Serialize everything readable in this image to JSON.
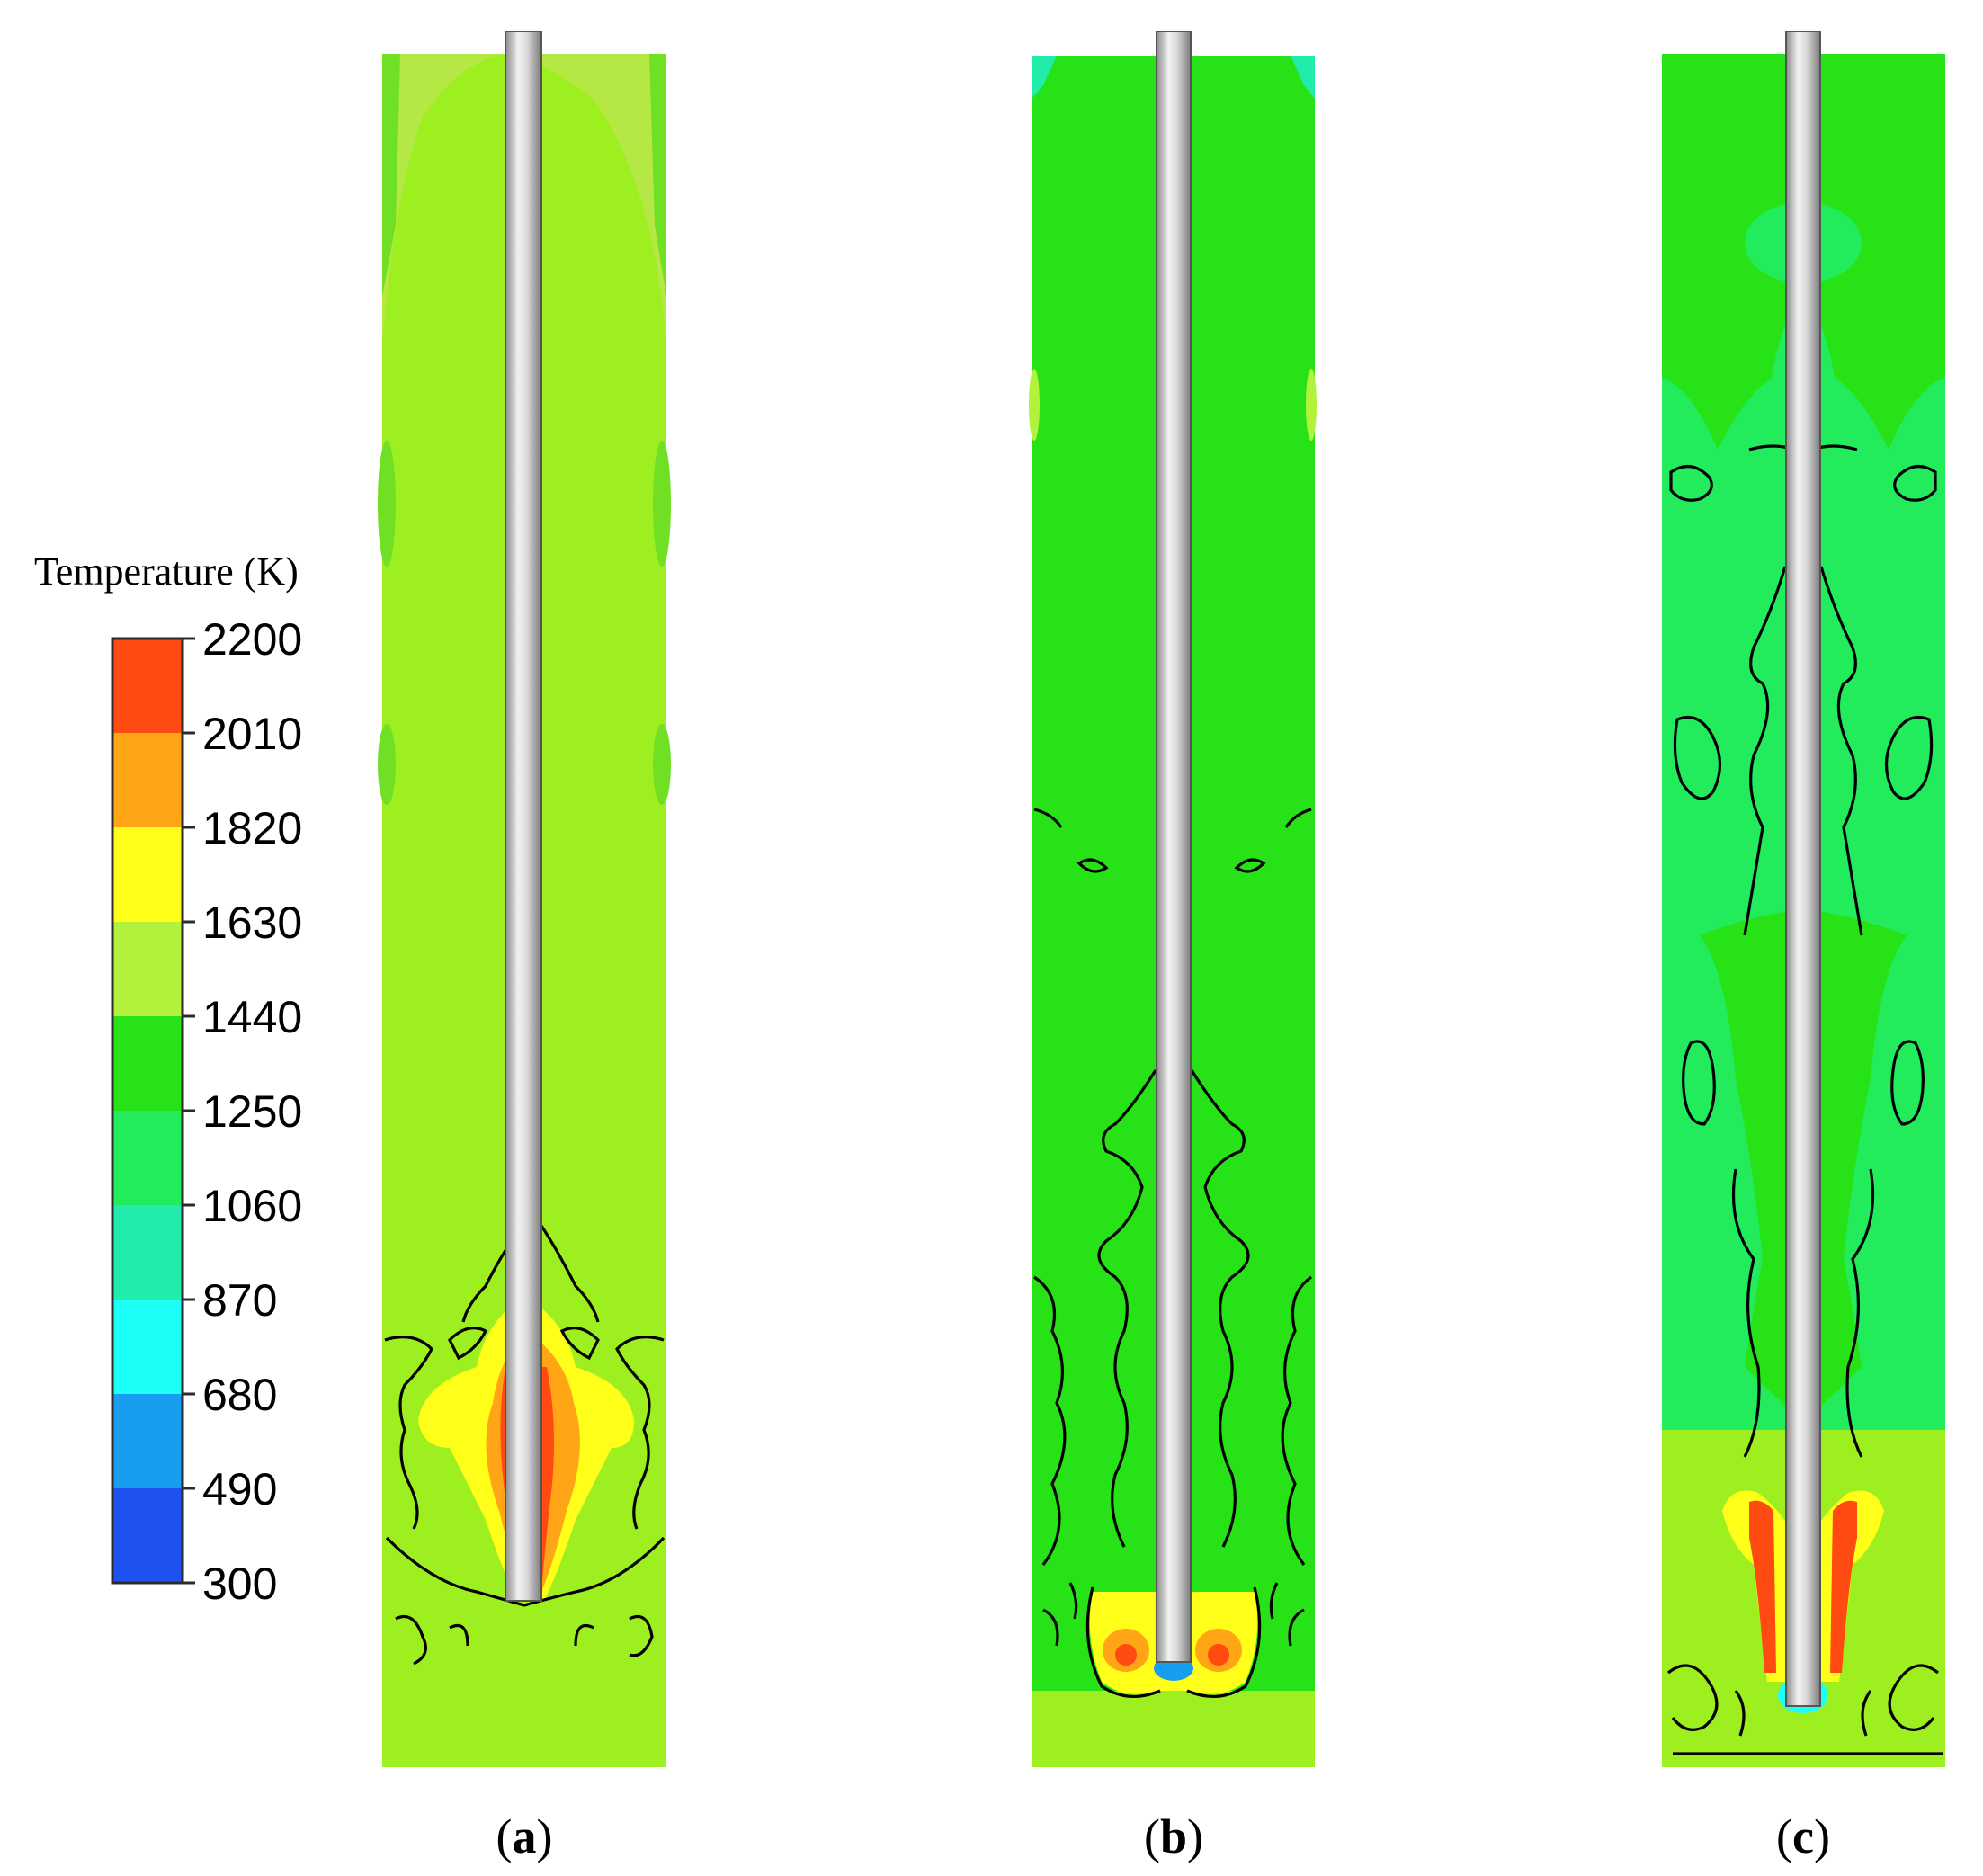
{
  "colorbar": {
    "title": "Temperature (K)",
    "ticks": [
      "2200",
      "2010",
      "1820",
      "1630",
      "1440",
      "1250",
      "1060",
      "870",
      "680",
      "490",
      "300"
    ],
    "bands": [
      "#ff4a12",
      "#ffa516",
      "#ffff19",
      "#b2f23c",
      "#28e218",
      "#22ec5c",
      "#22ecac",
      "#1cfff7",
      "#189ef0",
      "#1e52f0"
    ]
  },
  "panels": [
    {
      "label_open": "(",
      "label_letter": "a",
      "label_close": ")"
    },
    {
      "label_open": "(",
      "label_letter": "b",
      "label_close": ")"
    },
    {
      "label_open": "(",
      "label_letter": "c",
      "label_close": ")"
    }
  ],
  "colors": {
    "panel_a_bg": "#9eef20",
    "panel_b_bg": "#28e218",
    "panel_c_bg": "#22ec5c",
    "rod": "#c8c8c8"
  }
}
